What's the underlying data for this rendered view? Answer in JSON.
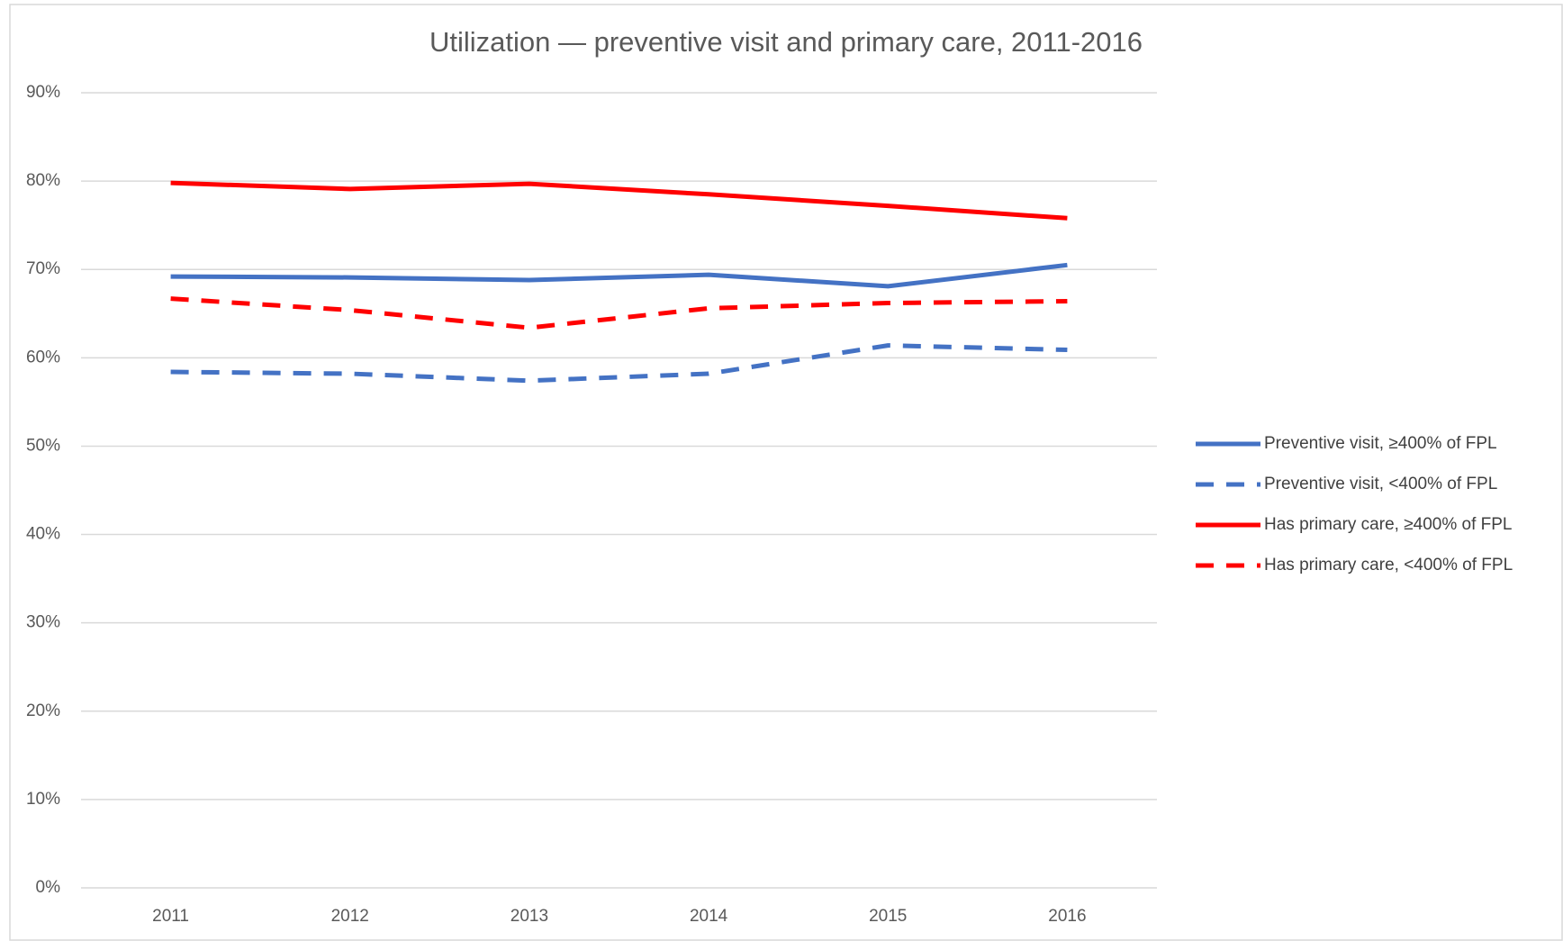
{
  "chart_data": {
    "type": "line",
    "title": "Utilization — preventive visit and primary care, 2011-2016",
    "categories": [
      "2011",
      "2012",
      "2013",
      "2014",
      "2015",
      "2016"
    ],
    "series": [
      {
        "name": "Preventive visit, ≥400% of FPL",
        "color": "#4472c4",
        "style": "solid",
        "values": [
          69.2,
          69.1,
          68.8,
          69.4,
          68.1,
          70.5
        ]
      },
      {
        "name": "Preventive visit, <400% of FPL",
        "color": "#4472c4",
        "style": "dashed",
        "values": [
          58.4,
          58.2,
          57.4,
          58.2,
          61.4,
          60.9
        ]
      },
      {
        "name": "Has primary care, ≥400% of FPL",
        "color": "#ff0000",
        "style": "solid",
        "values": [
          79.8,
          79.1,
          79.7,
          78.5,
          77.2,
          75.8
        ]
      },
      {
        "name": "Has primary care, <400% of FPL",
        "color": "#ff0000",
        "style": "dashed",
        "values": [
          66.7,
          65.4,
          63.4,
          65.6,
          66.2,
          66.4
        ]
      }
    ],
    "ylim": [
      0,
      90
    ],
    "yticks": [
      {
        "value": 0,
        "label": "0%"
      },
      {
        "value": 10,
        "label": "10%"
      },
      {
        "value": 20,
        "label": "20%"
      },
      {
        "value": 30,
        "label": "30%"
      },
      {
        "value": 40,
        "label": "40%"
      },
      {
        "value": 50,
        "label": "50%"
      },
      {
        "value": 60,
        "label": "60%"
      },
      {
        "value": 70,
        "label": "70%"
      },
      {
        "value": 80,
        "label": "80%"
      },
      {
        "value": 90,
        "label": "90%"
      }
    ],
    "grid": true,
    "legend": "right"
  }
}
